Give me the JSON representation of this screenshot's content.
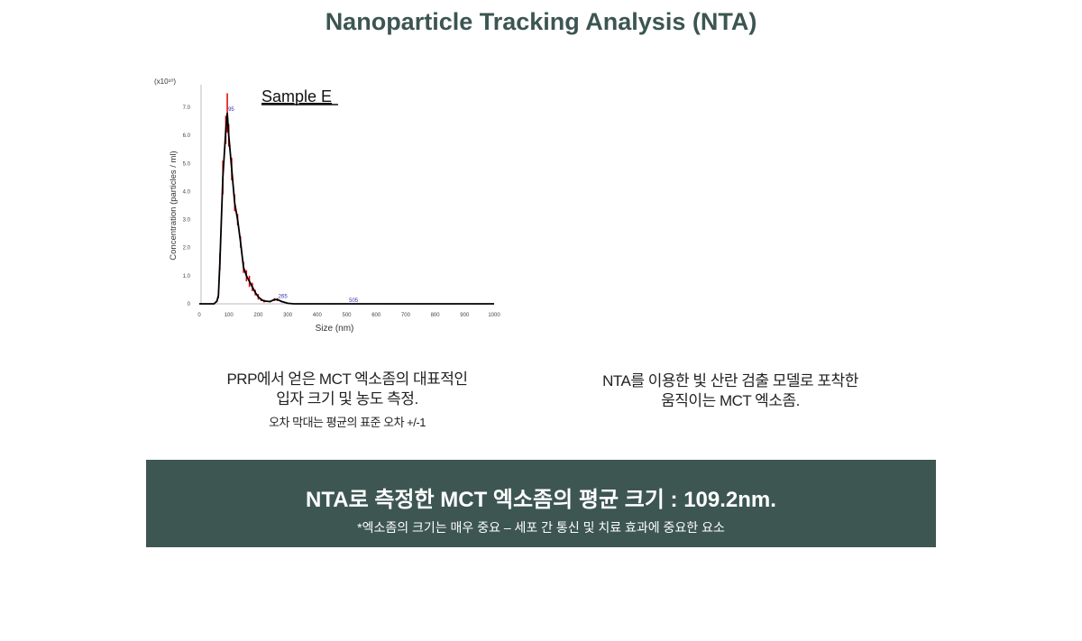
{
  "page": {
    "title": "Nanoparticle Tracking Analysis (NTA)"
  },
  "captions": {
    "left": {
      "line1": "PRP에서 얻은 MCT 엑소좀의 대표적인",
      "line2": "입자 크기 및 농도 측정.",
      "note": "오차 막대는 평균의 표준 오차 +/-1"
    },
    "right": {
      "line1": "NTA를 이용한 빛 산란 검출 모델로 포착한",
      "line2": "움직이는 MCT 엑소좀."
    }
  },
  "banner": {
    "main": "NTA로 측정한 MCT 엑소좀의 평균 크기 : 109.2nm.",
    "sub": "*엑소좀의 크기는 매우 중요 – 세포 간 통신 및 치료 효과에 중요한 요소",
    "color": "#3d5652"
  },
  "chart_data": {
    "type": "line",
    "title": "Sample E",
    "xlabel": "Size (nm)",
    "ylabel": "Concentration (particles / ml)",
    "yunit": "(x10¹⁰)",
    "xlim": [
      0,
      1000
    ],
    "ylim": [
      0,
      7.0
    ],
    "xticks": [
      "0",
      "100",
      "200",
      "300",
      "400",
      "500",
      "600",
      "700",
      "800",
      "900",
      "1000"
    ],
    "yticks": [
      "0",
      "1.0",
      "2.0",
      "3.0",
      "4.0",
      "5.0",
      "6.0",
      "7.0"
    ],
    "grid": false,
    "line_color": "#000000",
    "errorbar_color": "#e00000",
    "x": [
      0,
      50,
      60,
      65,
      70,
      80,
      90,
      95,
      100,
      110,
      120,
      130,
      140,
      150,
      160,
      170,
      180,
      190,
      200,
      210,
      220,
      240,
      255,
      265,
      280,
      300,
      320,
      1000
    ],
    "y": [
      0,
      0,
      0.1,
      0.3,
      1.5,
      4.5,
      6.2,
      6.8,
      6.0,
      4.8,
      3.6,
      3.0,
      2.2,
      1.3,
      1.0,
      0.8,
      0.6,
      0.4,
      0.25,
      0.15,
      0.1,
      0.08,
      0.15,
      0.15,
      0.08,
      0.02,
      0,
      0
    ],
    "error": [
      0,
      0,
      0.05,
      0.1,
      0.3,
      0.6,
      0.5,
      0.7,
      0.4,
      0.4,
      0.3,
      0.2,
      0.2,
      0.2,
      0.2,
      0.2,
      0.15,
      0.1,
      0.1,
      0.05,
      0.05,
      0.03,
      0.05,
      0.05,
      0.03,
      0,
      0,
      0
    ],
    "peak_labels": [
      {
        "x": 95,
        "y": 6.8,
        "text": "95"
      },
      {
        "x": 265,
        "y": 0.15,
        "text": "265"
      },
      {
        "x": 505,
        "y": 0,
        "text": "505"
      }
    ]
  }
}
